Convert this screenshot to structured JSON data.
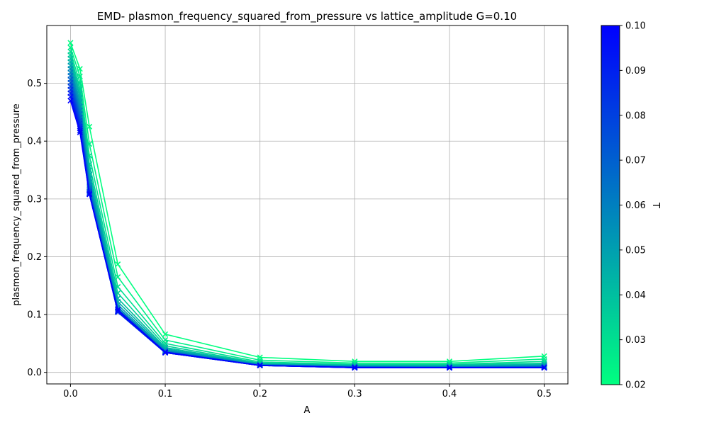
{
  "chart_data": {
    "type": "line",
    "title": "EMD- plasmon_frequency_squared_from_pressure vs lattice_amplitude G=0.10",
    "xlabel": "A",
    "ylabel": "plasmon_frequency_squared_from_pressure",
    "xlim": [
      -0.025,
      0.525
    ],
    "ylim": [
      -0.02,
      0.6
    ],
    "xticks": [
      0.0,
      0.1,
      0.2,
      0.3,
      0.4,
      0.5
    ],
    "xtick_labels": [
      "0.0",
      "0.1",
      "0.2",
      "0.3",
      "0.4",
      "0.5"
    ],
    "yticks": [
      0.0,
      0.1,
      0.2,
      0.3,
      0.4,
      0.5
    ],
    "ytick_labels": [
      "0.0",
      "0.1",
      "0.2",
      "0.3",
      "0.4",
      "0.5"
    ],
    "grid": true,
    "marker": "x",
    "x": [
      0.0,
      0.01,
      0.02,
      0.05,
      0.1,
      0.2,
      0.3,
      0.4,
      0.5
    ],
    "series": [
      {
        "T": 0.02,
        "values": [
          0.57,
          0.525,
          0.425,
          0.187,
          0.066,
          0.026,
          0.019,
          0.019,
          0.028
        ]
      },
      {
        "T": 0.025,
        "values": [
          0.562,
          0.512,
          0.395,
          0.165,
          0.056,
          0.021,
          0.016,
          0.016,
          0.023
        ]
      },
      {
        "T": 0.03,
        "values": [
          0.555,
          0.5,
          0.375,
          0.148,
          0.05,
          0.018,
          0.014,
          0.014,
          0.019
        ]
      },
      {
        "T": 0.035,
        "values": [
          0.549,
          0.49,
          0.36,
          0.137,
          0.046,
          0.016,
          0.013,
          0.013,
          0.016
        ]
      },
      {
        "T": 0.04,
        "values": [
          0.543,
          0.482,
          0.35,
          0.128,
          0.043,
          0.015,
          0.012,
          0.012,
          0.014
        ]
      },
      {
        "T": 0.045,
        "values": [
          0.537,
          0.475,
          0.342,
          0.122,
          0.041,
          0.014,
          0.011,
          0.011,
          0.013
        ]
      },
      {
        "T": 0.05,
        "values": [
          0.531,
          0.467,
          0.335,
          0.117,
          0.039,
          0.014,
          0.011,
          0.01,
          0.012
        ]
      },
      {
        "T": 0.055,
        "values": [
          0.525,
          0.46,
          0.329,
          0.113,
          0.038,
          0.013,
          0.01,
          0.01,
          0.011
        ]
      },
      {
        "T": 0.06,
        "values": [
          0.519,
          0.453,
          0.324,
          0.11,
          0.037,
          0.013,
          0.01,
          0.009,
          0.01
        ]
      },
      {
        "T": 0.065,
        "values": [
          0.513,
          0.447,
          0.32,
          0.108,
          0.036,
          0.012,
          0.009,
          0.009,
          0.01
        ]
      },
      {
        "T": 0.07,
        "values": [
          0.507,
          0.441,
          0.317,
          0.106,
          0.035,
          0.012,
          0.009,
          0.009,
          0.009
        ]
      },
      {
        "T": 0.075,
        "values": [
          0.501,
          0.436,
          0.314,
          0.105,
          0.035,
          0.012,
          0.009,
          0.008,
          0.009
        ]
      },
      {
        "T": 0.08,
        "values": [
          0.495,
          0.431,
          0.312,
          0.104,
          0.034,
          0.012,
          0.009,
          0.008,
          0.009
        ]
      },
      {
        "T": 0.085,
        "values": [
          0.489,
          0.426,
          0.31,
          0.104,
          0.034,
          0.012,
          0.008,
          0.008,
          0.008
        ]
      },
      {
        "T": 0.09,
        "values": [
          0.483,
          0.422,
          0.309,
          0.105,
          0.034,
          0.012,
          0.008,
          0.008,
          0.008
        ]
      },
      {
        "T": 0.095,
        "values": [
          0.477,
          0.418,
          0.308,
          0.106,
          0.034,
          0.012,
          0.008,
          0.008,
          0.008
        ]
      },
      {
        "T": 0.1,
        "values": [
          0.47,
          0.415,
          0.308,
          0.108,
          0.035,
          0.012,
          0.008,
          0.008,
          0.008
        ]
      }
    ],
    "colorbar": {
      "label": "T",
      "range": [
        0.02,
        0.1
      ],
      "ticks": [
        0.02,
        0.03,
        0.04,
        0.05,
        0.06,
        0.07,
        0.08,
        0.09,
        0.1
      ],
      "tick_labels": [
        "0.02",
        "0.03",
        "0.04",
        "0.05",
        "0.06",
        "0.07",
        "0.08",
        "0.09",
        "0.10"
      ],
      "color_low": "#00ff80",
      "color_high": "#0000ff",
      "colormap": "winter"
    }
  }
}
